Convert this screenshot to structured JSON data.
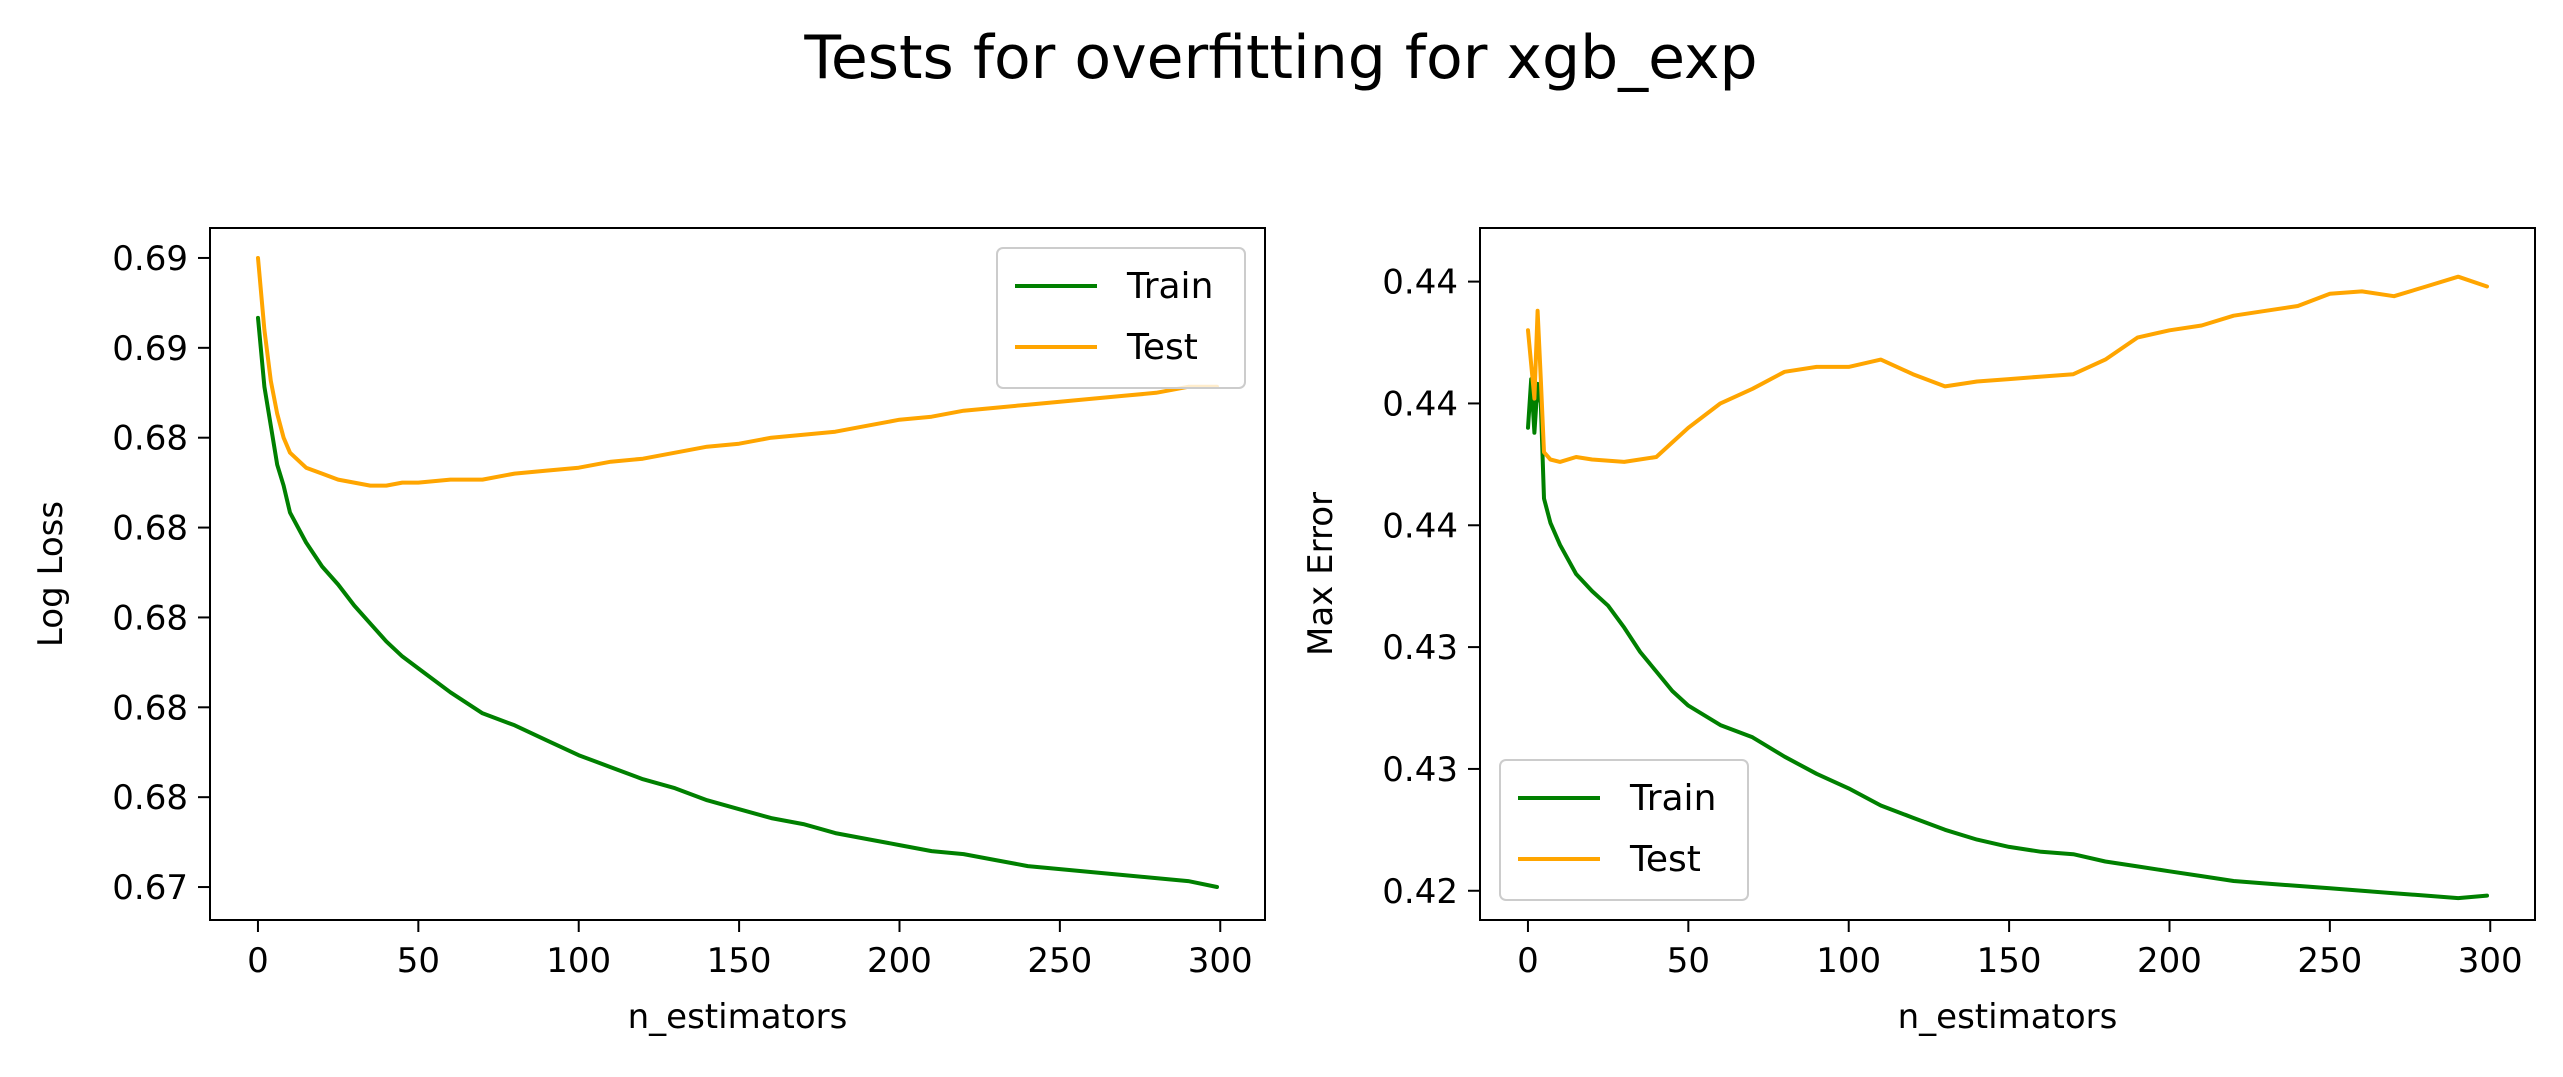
{
  "figure": {
    "title": "Tests for overfitting for xgb_exp"
  },
  "chart_data": [
    {
      "type": "line",
      "title": "",
      "xlabel": "n_estimators",
      "ylabel": "Log Loss",
      "xlim": [
        -14.95,
        313.95
      ],
      "ylim": [
        0.6683,
        0.6914
      ],
      "xticks": [
        0,
        50,
        100,
        150,
        200,
        250,
        300
      ],
      "xtick_labels": [
        "0",
        "50",
        "100",
        "150",
        "200",
        "250",
        "300"
      ],
      "yticks": [
        0.6694,
        0.6724,
        0.6754,
        0.6784,
        0.6814,
        0.6844,
        0.6874,
        0.6904
      ],
      "ytick_labels": [
        "0.67",
        "0.68",
        "0.68",
        "0.68",
        "0.68",
        "0.68",
        "0.69",
        "0.69"
      ],
      "grid": false,
      "legend": "top-right",
      "series": [
        {
          "name": "Train",
          "color": "#008000",
          "x": [
            0,
            2,
            4,
            6,
            8,
            10,
            15,
            20,
            25,
            30,
            35,
            40,
            45,
            50,
            60,
            70,
            80,
            90,
            100,
            110,
            120,
            130,
            140,
            150,
            160,
            170,
            180,
            190,
            200,
            210,
            220,
            230,
            240,
            250,
            260,
            270,
            280,
            290,
            299
          ],
          "y": [
            0.6884,
            0.6861,
            0.6848,
            0.6835,
            0.6828,
            0.6819,
            0.6809,
            0.6801,
            0.6795,
            0.6788,
            0.6782,
            0.6776,
            0.6771,
            0.6767,
            0.6759,
            0.6752,
            0.6748,
            0.6743,
            0.6738,
            0.6734,
            0.673,
            0.6727,
            0.6723,
            0.672,
            0.6717,
            0.6715,
            0.6712,
            0.671,
            0.6708,
            0.6706,
            0.6705,
            0.6703,
            0.6701,
            0.67,
            0.6699,
            0.6698,
            0.6697,
            0.6696,
            0.6694
          ]
        },
        {
          "name": "Test",
          "color": "#FFA500",
          "x": [
            0,
            2,
            4,
            6,
            8,
            10,
            15,
            20,
            25,
            30,
            35,
            40,
            45,
            50,
            60,
            70,
            80,
            90,
            100,
            110,
            120,
            130,
            140,
            150,
            160,
            170,
            180,
            190,
            200,
            210,
            220,
            230,
            240,
            250,
            260,
            270,
            280,
            290,
            299
          ],
          "y": [
            0.6904,
            0.688,
            0.6863,
            0.6852,
            0.6844,
            0.6839,
            0.6834,
            0.6832,
            0.683,
            0.6829,
            0.6828,
            0.6828,
            0.6829,
            0.6829,
            0.683,
            0.683,
            0.6832,
            0.6833,
            0.6834,
            0.6836,
            0.6837,
            0.6839,
            0.6841,
            0.6842,
            0.6844,
            0.6845,
            0.6846,
            0.6848,
            0.685,
            0.6851,
            0.6853,
            0.6854,
            0.6855,
            0.6856,
            0.6857,
            0.6858,
            0.6859,
            0.6861,
            0.6861
          ]
        }
      ]
    },
    {
      "type": "line",
      "title": "",
      "xlabel": "n_estimators",
      "ylabel": "Max Error",
      "xlim": [
        -14.95,
        313.95
      ],
      "ylim": [
        0.4168,
        0.4452
      ],
      "xticks": [
        0,
        50,
        100,
        150,
        200,
        250,
        300
      ],
      "xtick_labels": [
        "0",
        "50",
        "100",
        "150",
        "200",
        "250",
        "300"
      ],
      "yticks": [
        0.418,
        0.423,
        0.428,
        0.433,
        0.438,
        0.443
      ],
      "ytick_labels": [
        "0.42",
        "0.43",
        "0.43",
        "0.44",
        "0.44",
        "0.44"
      ],
      "grid": false,
      "legend": "bottom-left",
      "series": [
        {
          "name": "Train",
          "color": "#008000",
          "x": [
            0,
            1,
            2,
            3,
            4,
            5,
            7,
            10,
            15,
            20,
            25,
            30,
            35,
            40,
            45,
            50,
            60,
            70,
            80,
            90,
            100,
            110,
            120,
            130,
            140,
            150,
            160,
            170,
            180,
            190,
            200,
            210,
            220,
            230,
            240,
            250,
            260,
            270,
            280,
            290,
            299
          ],
          "y": [
            0.437,
            0.439,
            0.4368,
            0.4388,
            0.438,
            0.4341,
            0.4331,
            0.4322,
            0.431,
            0.4303,
            0.4297,
            0.4288,
            0.4278,
            0.427,
            0.4262,
            0.4256,
            0.4248,
            0.4243,
            0.4235,
            0.4228,
            0.4222,
            0.4215,
            0.421,
            0.4205,
            0.4201,
            0.4198,
            0.4196,
            0.4195,
            0.4192,
            0.419,
            0.4188,
            0.4186,
            0.4184,
            0.4183,
            0.4182,
            0.4181,
            0.418,
            0.4179,
            0.4178,
            0.4177,
            0.4178
          ]
        },
        {
          "name": "Test",
          "color": "#FFA500",
          "x": [
            0,
            1,
            2,
            3,
            4,
            5,
            7,
            10,
            15,
            20,
            30,
            40,
            45,
            50,
            60,
            70,
            80,
            90,
            100,
            110,
            120,
            130,
            140,
            150,
            160,
            170,
            180,
            190,
            200,
            210,
            220,
            230,
            240,
            250,
            260,
            270,
            280,
            290,
            299
          ],
          "y": [
            0.441,
            0.4396,
            0.4382,
            0.4418,
            0.439,
            0.436,
            0.4357,
            0.4356,
            0.4358,
            0.4357,
            0.4356,
            0.4358,
            0.4364,
            0.437,
            0.438,
            0.4386,
            0.4393,
            0.4395,
            0.4395,
            0.4398,
            0.4392,
            0.4387,
            0.4389,
            0.439,
            0.4391,
            0.4392,
            0.4398,
            0.4407,
            0.441,
            0.4412,
            0.4416,
            0.4418,
            0.442,
            0.4425,
            0.4426,
            0.4424,
            0.4428,
            0.4432,
            0.4428
          ]
        }
      ]
    }
  ]
}
